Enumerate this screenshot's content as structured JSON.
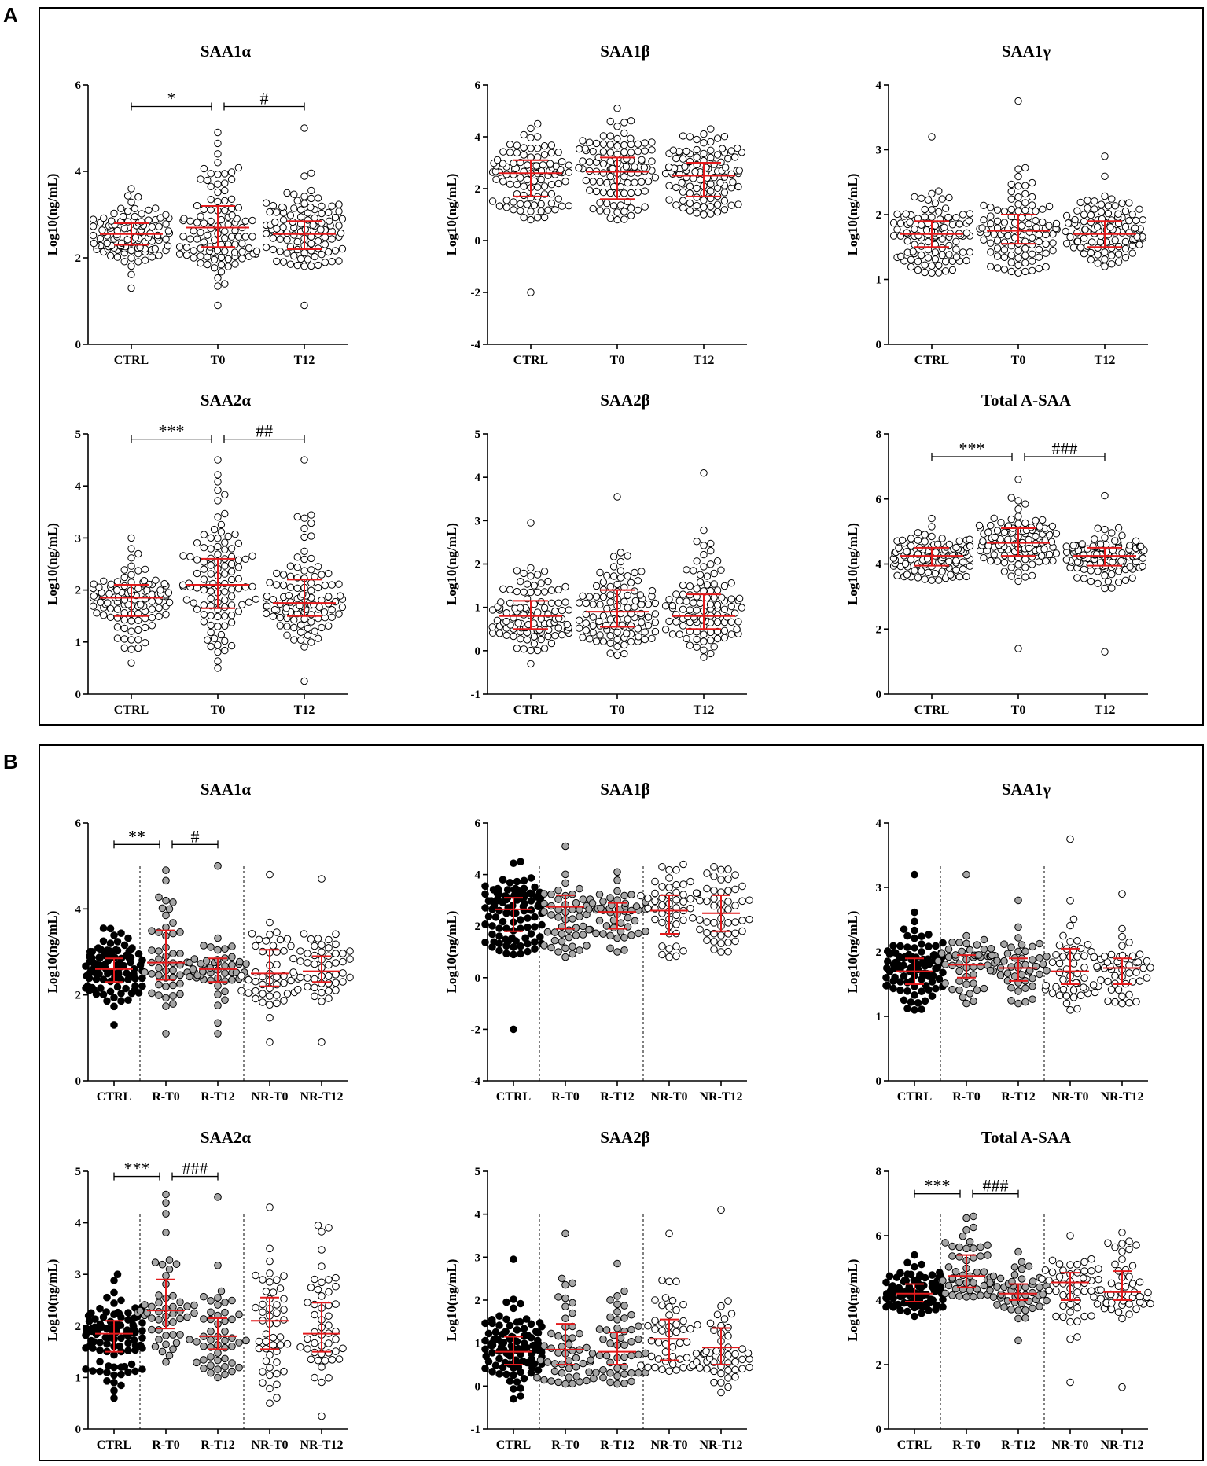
{
  "panels": [
    {
      "letter": "A",
      "charts": [
        0,
        1,
        2,
        3,
        4,
        5
      ]
    },
    {
      "letter": "B",
      "charts": [
        6,
        7,
        8,
        9,
        10,
        11
      ]
    }
  ],
  "colors": {
    "median": "#e31a1c",
    "ctrl_filled": "#000000",
    "r_filled": "#a6a6a6",
    "open": "#ffffff"
  },
  "chart_data": [
    {
      "type": "scatter",
      "title": "SAA1α",
      "ylabel": "Log10(ng/mL)",
      "ylim": [
        0,
        6
      ],
      "yticks": [
        0,
        2,
        4,
        6
      ],
      "categories": [
        "CTRL",
        "T0",
        "T12"
      ],
      "separators": [],
      "series": [
        {
          "name": "CTRL",
          "fill": "open",
          "n": 105,
          "median": 2.55,
          "q1": 2.3,
          "q3": 2.8,
          "min": 1.3,
          "max": 3.6
        },
        {
          "name": "T0",
          "fill": "open",
          "n": 105,
          "median": 2.7,
          "q1": 2.25,
          "q3": 3.2,
          "min": 0.9,
          "max": 4.9
        },
        {
          "name": "T12",
          "fill": "open",
          "n": 105,
          "median": 2.55,
          "q1": 2.2,
          "q3": 2.85,
          "min": 0.9,
          "max": 5.0
        }
      ],
      "annotations": [
        {
          "text": "*",
          "from": 0,
          "to": 1,
          "y": 5.5
        },
        {
          "text": "#",
          "from": 1,
          "to": 2,
          "y": 5.5
        }
      ]
    },
    {
      "type": "scatter",
      "title": "SAA1β",
      "ylabel": "Log10(ng/mL)",
      "ylim": [
        -4,
        6
      ],
      "yticks": [
        -4,
        -2,
        0,
        2,
        4,
        6
      ],
      "categories": [
        "CTRL",
        "T0",
        "T12"
      ],
      "separators": [],
      "series": [
        {
          "name": "CTRL",
          "fill": "open",
          "n": 105,
          "median": 2.6,
          "q1": 1.7,
          "q3": 3.1,
          "min": 0.8,
          "max": 4.5,
          "outliers": [
            -2.0
          ]
        },
        {
          "name": "T0",
          "fill": "open",
          "n": 105,
          "median": 2.65,
          "q1": 1.6,
          "q3": 3.2,
          "min": 0.8,
          "max": 5.1
        },
        {
          "name": "T12",
          "fill": "open",
          "n": 105,
          "median": 2.5,
          "q1": 1.7,
          "q3": 3.0,
          "min": 1.0,
          "max": 4.3
        }
      ],
      "annotations": []
    },
    {
      "type": "scatter",
      "title": "SAA1γ",
      "ylabel": "Log10(ng/mL)",
      "ylim": [
        0,
        4
      ],
      "yticks": [
        0,
        1,
        2,
        3,
        4
      ],
      "categories": [
        "CTRL",
        "T0",
        "T12"
      ],
      "separators": [],
      "series": [
        {
          "name": "CTRL",
          "fill": "open",
          "n": 105,
          "median": 1.7,
          "q1": 1.5,
          "q3": 1.9,
          "min": 1.1,
          "max": 3.2
        },
        {
          "name": "T0",
          "fill": "open",
          "n": 105,
          "median": 1.75,
          "q1": 1.55,
          "q3": 2.0,
          "min": 1.1,
          "max": 3.75
        },
        {
          "name": "T12",
          "fill": "open",
          "n": 105,
          "median": 1.7,
          "q1": 1.5,
          "q3": 1.9,
          "min": 1.2,
          "max": 2.9
        }
      ],
      "annotations": []
    },
    {
      "type": "scatter",
      "title": "SAA2α",
      "ylabel": "Log10(ng/mL)",
      "ylim": [
        0,
        5
      ],
      "yticks": [
        0,
        1,
        2,
        3,
        4,
        5
      ],
      "categories": [
        "CTRL",
        "T0",
        "T12"
      ],
      "separators": [],
      "series": [
        {
          "name": "CTRL",
          "fill": "open",
          "n": 105,
          "median": 1.85,
          "q1": 1.5,
          "q3": 2.1,
          "min": 0.6,
          "max": 3.0
        },
        {
          "name": "T0",
          "fill": "open",
          "n": 105,
          "median": 2.1,
          "q1": 1.65,
          "q3": 2.6,
          "min": 0.5,
          "max": 4.5
        },
        {
          "name": "T12",
          "fill": "open",
          "n": 105,
          "median": 1.75,
          "q1": 1.5,
          "q3": 2.2,
          "min": 0.25,
          "max": 4.5
        }
      ],
      "annotations": [
        {
          "text": "***",
          "from": 0,
          "to": 1,
          "y": 4.9
        },
        {
          "text": "##",
          "from": 1,
          "to": 2,
          "y": 4.9
        }
      ]
    },
    {
      "type": "scatter",
      "title": "SAA2β",
      "ylabel": "Log10(ng/mL)",
      "ylim": [
        -1,
        5
      ],
      "yticks": [
        -1,
        0,
        1,
        2,
        3,
        4,
        5
      ],
      "categories": [
        "CTRL",
        "T0",
        "T12"
      ],
      "separators": [],
      "series": [
        {
          "name": "CTRL",
          "fill": "open",
          "n": 105,
          "median": 0.8,
          "q1": 0.5,
          "q3": 1.15,
          "min": -0.3,
          "max": 2.95
        },
        {
          "name": "T0",
          "fill": "open",
          "n": 105,
          "median": 0.9,
          "q1": 0.55,
          "q3": 1.4,
          "min": -0.1,
          "max": 3.55
        },
        {
          "name": "T12",
          "fill": "open",
          "n": 105,
          "median": 0.8,
          "q1": 0.5,
          "q3": 1.3,
          "min": -0.15,
          "max": 4.1
        }
      ],
      "annotations": []
    },
    {
      "type": "scatter",
      "title": "Total A-SAA",
      "ylabel": "Log10(ng/mL)",
      "ylim": [
        0,
        8
      ],
      "yticks": [
        0,
        2,
        4,
        6,
        8
      ],
      "categories": [
        "CTRL",
        "T0",
        "T12"
      ],
      "separators": [],
      "series": [
        {
          "name": "CTRL",
          "fill": "open",
          "n": 105,
          "median": 4.25,
          "q1": 3.95,
          "q3": 4.5,
          "min": 3.5,
          "max": 5.4
        },
        {
          "name": "T0",
          "fill": "open",
          "n": 105,
          "median": 4.65,
          "q1": 4.25,
          "q3": 5.1,
          "min": 1.4,
          "max": 6.6
        },
        {
          "name": "T12",
          "fill": "open",
          "n": 105,
          "median": 4.25,
          "q1": 3.95,
          "q3": 4.5,
          "min": 1.3,
          "max": 6.1
        }
      ],
      "annotations": [
        {
          "text": "***",
          "from": 0,
          "to": 1,
          "y": 7.3
        },
        {
          "text": "###",
          "from": 1,
          "to": 2,
          "y": 7.3
        }
      ]
    },
    {
      "type": "scatter",
      "title": "SAA1α",
      "ylabel": "Log10(ng/mL)",
      "ylim": [
        0,
        6
      ],
      "yticks": [
        0,
        2,
        4,
        6
      ],
      "categories": [
        "CTRL",
        "R-T0",
        "R-T12",
        "NR-T0",
        "NR-T12"
      ],
      "separators": [
        0.5,
        2.5
      ],
      "series": [
        {
          "name": "CTRL",
          "fill": "ctrl_filled",
          "n": 105,
          "median": 2.6,
          "q1": 2.3,
          "q3": 2.85,
          "min": 1.3,
          "max": 3.55
        },
        {
          "name": "R-T0",
          "fill": "r_filled",
          "n": 50,
          "median": 2.75,
          "q1": 2.35,
          "q3": 3.5,
          "min": 1.1,
          "max": 4.9
        },
        {
          "name": "R-T12",
          "fill": "r_filled",
          "n": 50,
          "median": 2.6,
          "q1": 2.3,
          "q3": 2.85,
          "min": 1.1,
          "max": 5.0
        },
        {
          "name": "NR-T0",
          "fill": "open",
          "n": 50,
          "median": 2.5,
          "q1": 2.2,
          "q3": 3.05,
          "min": 0.9,
          "max": 4.8
        },
        {
          "name": "NR-T12",
          "fill": "open",
          "n": 50,
          "median": 2.55,
          "q1": 2.3,
          "q3": 2.9,
          "min": 0.9,
          "max": 4.7
        }
      ],
      "annotations": [
        {
          "text": "**",
          "from": 0,
          "to": 1,
          "y": 5.5
        },
        {
          "text": "#",
          "from": 1,
          "to": 2,
          "y": 5.5
        }
      ]
    },
    {
      "type": "scatter",
      "title": "SAA1β",
      "ylabel": "Log10(ng/mL)",
      "ylim": [
        -4,
        6
      ],
      "yticks": [
        -4,
        -2,
        0,
        2,
        4,
        6
      ],
      "categories": [
        "CTRL",
        "R-T0",
        "R-T12",
        "NR-T0",
        "NR-T12"
      ],
      "separators": [
        0.5,
        2.5
      ],
      "series": [
        {
          "name": "CTRL",
          "fill": "ctrl_filled",
          "n": 105,
          "median": 2.65,
          "q1": 1.8,
          "q3": 3.1,
          "min": 0.9,
          "max": 4.5,
          "outliers": [
            -2.0
          ]
        },
        {
          "name": "R-T0",
          "fill": "r_filled",
          "n": 50,
          "median": 2.75,
          "q1": 1.9,
          "q3": 3.2,
          "min": 0.8,
          "max": 5.1
        },
        {
          "name": "R-T12",
          "fill": "r_filled",
          "n": 50,
          "median": 2.55,
          "q1": 1.9,
          "q3": 2.9,
          "min": 1.0,
          "max": 4.1
        },
        {
          "name": "NR-T0",
          "fill": "open",
          "n": 50,
          "median": 2.6,
          "q1": 1.7,
          "q3": 3.2,
          "min": 0.8,
          "max": 4.4
        },
        {
          "name": "NR-T12",
          "fill": "open",
          "n": 50,
          "median": 2.5,
          "q1": 1.8,
          "q3": 3.2,
          "min": 1.0,
          "max": 4.3
        }
      ],
      "annotations": []
    },
    {
      "type": "scatter",
      "title": "SAA1γ",
      "ylabel": "Log10(ng/mL)",
      "ylim": [
        0,
        4
      ],
      "yticks": [
        0,
        1,
        2,
        3,
        4
      ],
      "categories": [
        "CTRL",
        "R-T0",
        "R-T12",
        "NR-T0",
        "NR-T12"
      ],
      "separators": [
        0.5,
        2.5
      ],
      "series": [
        {
          "name": "CTRL",
          "fill": "ctrl_filled",
          "n": 105,
          "median": 1.7,
          "q1": 1.5,
          "q3": 1.9,
          "min": 1.1,
          "max": 3.2
        },
        {
          "name": "R-T0",
          "fill": "r_filled",
          "n": 50,
          "median": 1.8,
          "q1": 1.6,
          "q3": 1.95,
          "min": 1.2,
          "max": 3.2
        },
        {
          "name": "R-T12",
          "fill": "r_filled",
          "n": 50,
          "median": 1.75,
          "q1": 1.55,
          "q3": 1.9,
          "min": 1.2,
          "max": 2.8
        },
        {
          "name": "NR-T0",
          "fill": "open",
          "n": 50,
          "median": 1.7,
          "q1": 1.5,
          "q3": 2.05,
          "min": 1.1,
          "max": 3.75
        },
        {
          "name": "NR-T12",
          "fill": "open",
          "n": 50,
          "median": 1.75,
          "q1": 1.5,
          "q3": 1.9,
          "min": 1.2,
          "max": 2.9
        }
      ],
      "annotations": []
    },
    {
      "type": "scatter",
      "title": "SAA2α",
      "ylabel": "Log10(ng/mL)",
      "ylim": [
        0,
        5
      ],
      "yticks": [
        0,
        1,
        2,
        3,
        4,
        5
      ],
      "categories": [
        "CTRL",
        "R-T0",
        "R-T12",
        "NR-T0",
        "NR-T12"
      ],
      "separators": [
        0.5,
        2.5
      ],
      "series": [
        {
          "name": "CTRL",
          "fill": "ctrl_filled",
          "n": 105,
          "median": 1.85,
          "q1": 1.5,
          "q3": 2.1,
          "min": 0.6,
          "max": 3.0
        },
        {
          "name": "R-T0",
          "fill": "r_filled",
          "n": 50,
          "median": 2.3,
          "q1": 1.95,
          "q3": 2.9,
          "min": 1.3,
          "max": 4.55
        },
        {
          "name": "R-T12",
          "fill": "r_filled",
          "n": 50,
          "median": 1.8,
          "q1": 1.55,
          "q3": 2.15,
          "min": 1.0,
          "max": 4.5
        },
        {
          "name": "NR-T0",
          "fill": "open",
          "n": 50,
          "median": 2.1,
          "q1": 1.55,
          "q3": 2.55,
          "min": 0.5,
          "max": 4.3
        },
        {
          "name": "NR-T12",
          "fill": "open",
          "n": 50,
          "median": 1.85,
          "q1": 1.5,
          "q3": 2.45,
          "min": 0.25,
          "max": 3.95
        }
      ],
      "annotations": [
        {
          "text": "***",
          "from": 0,
          "to": 1,
          "y": 4.9
        },
        {
          "text": "###",
          "from": 1,
          "to": 2,
          "y": 4.9
        }
      ]
    },
    {
      "type": "scatter",
      "title": "SAA2β",
      "ylabel": "Log10(ng/mL)",
      "ylim": [
        -1,
        5
      ],
      "yticks": [
        -1,
        0,
        1,
        2,
        3,
        4,
        5
      ],
      "categories": [
        "CTRL",
        "R-T0",
        "R-T12",
        "NR-T0",
        "NR-T12"
      ],
      "separators": [
        0.5,
        2.5
      ],
      "series": [
        {
          "name": "CTRL",
          "fill": "ctrl_filled",
          "n": 105,
          "median": 0.8,
          "q1": 0.5,
          "q3": 1.15,
          "min": -0.3,
          "max": 2.95
        },
        {
          "name": "R-T0",
          "fill": "r_filled",
          "n": 50,
          "median": 0.85,
          "q1": 0.5,
          "q3": 1.45,
          "min": 0.05,
          "max": 3.55
        },
        {
          "name": "R-T12",
          "fill": "r_filled",
          "n": 50,
          "median": 0.8,
          "q1": 0.5,
          "q3": 1.25,
          "min": 0.05,
          "max": 2.85
        },
        {
          "name": "NR-T0",
          "fill": "open",
          "n": 50,
          "median": 1.1,
          "q1": 0.6,
          "q3": 1.55,
          "min": 0.35,
          "max": 3.55
        },
        {
          "name": "NR-T12",
          "fill": "open",
          "n": 50,
          "median": 0.9,
          "q1": 0.5,
          "q3": 1.35,
          "min": -0.15,
          "max": 4.1
        }
      ],
      "annotations": []
    },
    {
      "type": "scatter",
      "title": "Total A-SAA",
      "ylabel": "Log10(ng/mL)",
      "ylim": [
        0,
        8
      ],
      "yticks": [
        0,
        2,
        4,
        6,
        8
      ],
      "categories": [
        "CTRL",
        "R-T0",
        "R-T12",
        "NR-T0",
        "NR-T12"
      ],
      "separators": [
        0.5,
        2.5
      ],
      "series": [
        {
          "name": "CTRL",
          "fill": "ctrl_filled",
          "n": 105,
          "median": 4.2,
          "q1": 3.95,
          "q3": 4.5,
          "min": 3.5,
          "max": 5.4
        },
        {
          "name": "R-T0",
          "fill": "r_filled",
          "n": 50,
          "median": 4.75,
          "q1": 4.4,
          "q3": 5.4,
          "min": 4.1,
          "max": 6.6
        },
        {
          "name": "R-T12",
          "fill": "r_filled",
          "n": 50,
          "median": 4.2,
          "q1": 4.0,
          "q3": 4.5,
          "min": 2.75,
          "max": 5.5
        },
        {
          "name": "NR-T0",
          "fill": "open",
          "n": 50,
          "median": 4.55,
          "q1": 4.0,
          "q3": 4.85,
          "min": 1.45,
          "max": 6.0
        },
        {
          "name": "NR-T12",
          "fill": "open",
          "n": 50,
          "median": 4.25,
          "q1": 4.0,
          "q3": 4.9,
          "min": 1.3,
          "max": 6.1
        }
      ],
      "annotations": [
        {
          "text": "***",
          "from": 0,
          "to": 1,
          "y": 7.3
        },
        {
          "text": "###",
          "from": 1,
          "to": 2,
          "y": 7.3
        }
      ]
    }
  ]
}
